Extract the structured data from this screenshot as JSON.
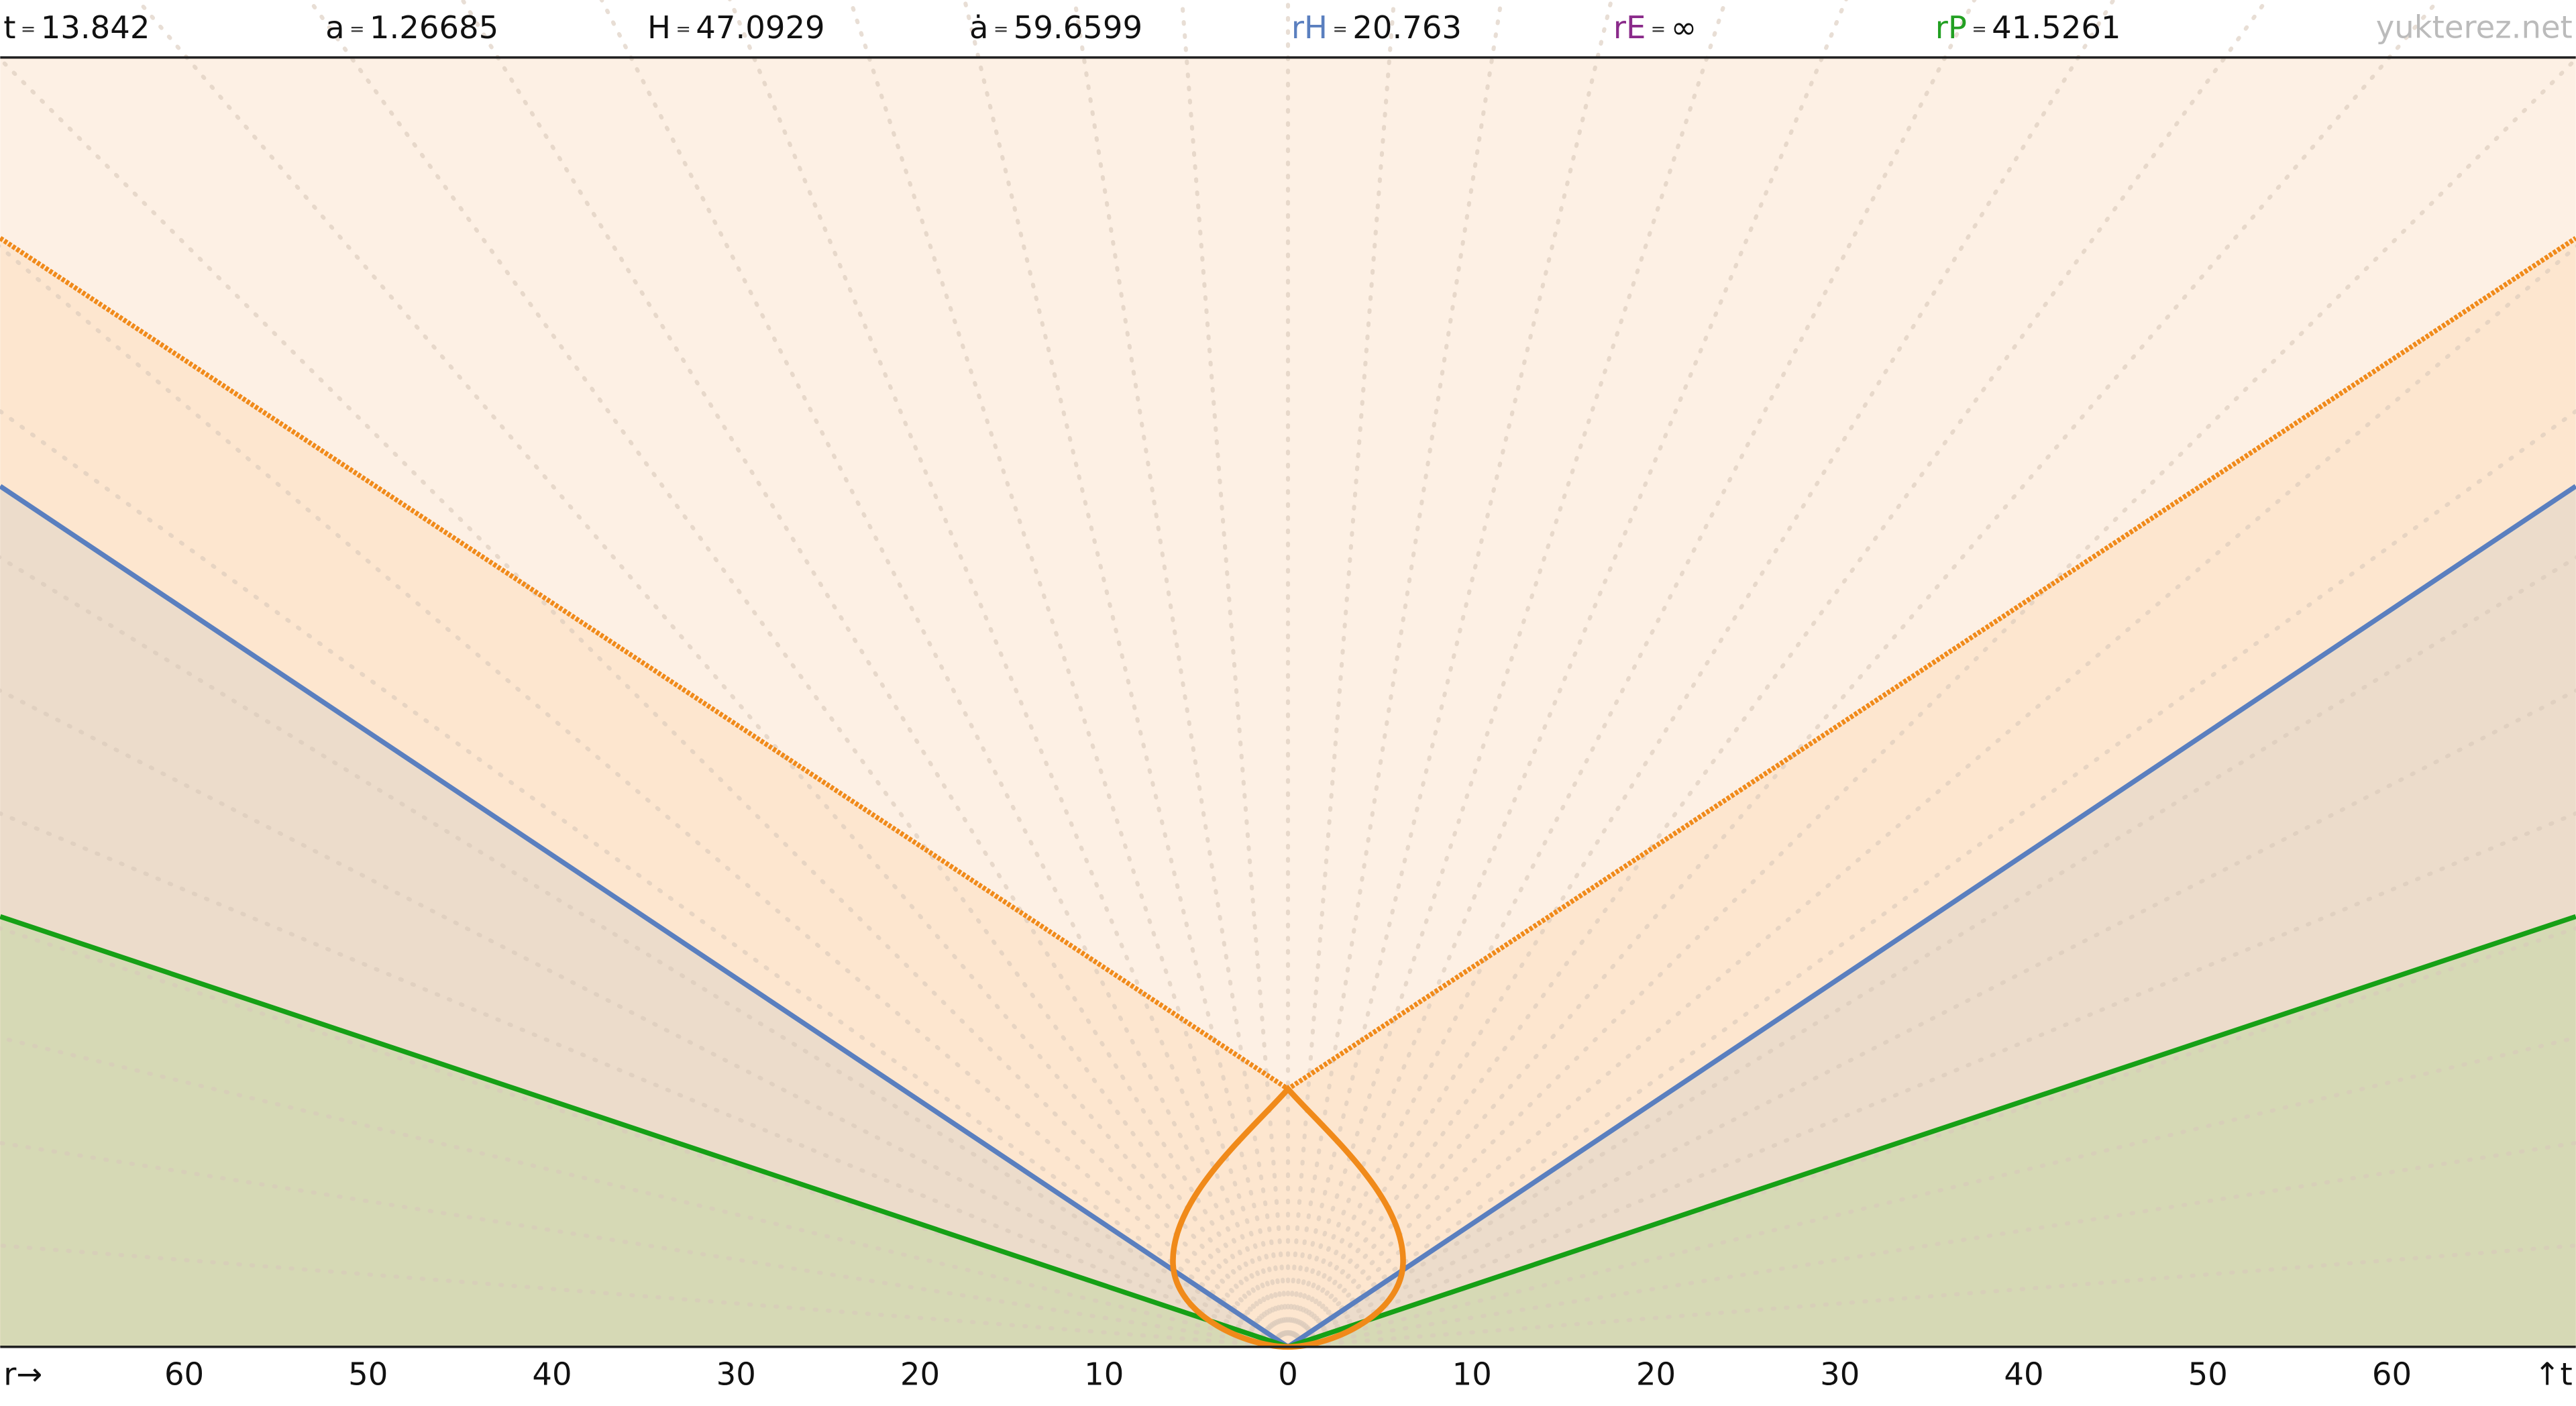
{
  "header": {
    "equals": "=",
    "items": [
      {
        "label": "t",
        "value": "13.842",
        "color": "#111111"
      },
      {
        "label": "a",
        "value": "1.26685",
        "color": "#111111"
      },
      {
        "label": "H",
        "value": "47.0929",
        "color": "#111111"
      },
      {
        "label": "ȧ",
        "value": "59.6599",
        "color": "#111111"
      },
      {
        "label": "rH",
        "value": "20.763",
        "color": "#5a7fbf"
      },
      {
        "label": "rE",
        "value": "∞",
        "color": "#8a2a8a"
      },
      {
        "label": "rP",
        "value": "41.5261",
        "color": "#22a022"
      }
    ],
    "watermark": "yukterez.net"
  },
  "axis": {
    "left_label": "r→",
    "right_label": "↑t",
    "left_ticks": [
      "60",
      "50",
      "40",
      "30",
      "20",
      "10"
    ],
    "center_tick": "0",
    "right_ticks": [
      "10",
      "20",
      "30",
      "40",
      "50",
      "60"
    ]
  }
}
